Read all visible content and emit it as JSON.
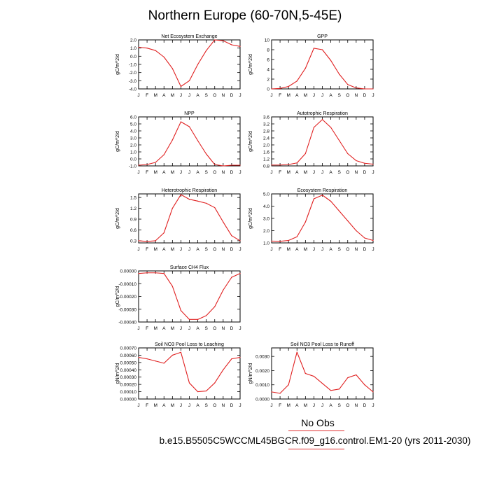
{
  "title": "Northern Europe (60-70N,5-45E)",
  "months": [
    "J",
    "F",
    "M",
    "A",
    "M",
    "J",
    "J",
    "A",
    "S",
    "O",
    "N",
    "D",
    "J"
  ],
  "line_color": "#e02020",
  "legend": {
    "obs_label": "No Obs",
    "obs_line_color": "#e03030"
  },
  "caption": "b.e15.B5505C5WCCML45BGCR.f09_g16.control.EM1-20 (yrs 2011-2030)",
  "chart_data": [
    {
      "id": "nee",
      "type": "line",
      "title": "Net Ecosystem Exchange",
      "ylabel": "gC/m^2/d",
      "ylim": [
        -4.0,
        2.0
      ],
      "yticks": [
        "-4.0",
        "-3.0",
        "-2.0",
        "-1.0",
        "0.0",
        "1.0",
        "2.0"
      ],
      "ytick_values": [
        -4,
        -3,
        -2,
        -1,
        0,
        1,
        2
      ],
      "values": [
        1.1,
        1.0,
        0.7,
        -0.1,
        -1.5,
        -3.7,
        -3.0,
        -1.0,
        0.7,
        2.0,
        1.9,
        1.4,
        1.2
      ]
    },
    {
      "id": "gpp",
      "type": "line",
      "title": "GPP",
      "ylabel": "gC/m^2/d",
      "ylim": [
        0,
        10
      ],
      "yticks": [
        "0",
        "2",
        "4",
        "6",
        "8",
        "10"
      ],
      "ytick_values": [
        0,
        2,
        4,
        6,
        8,
        10
      ],
      "values": [
        0.0,
        0.1,
        0.5,
        1.6,
        4.2,
        8.3,
        8.0,
        5.8,
        3.0,
        0.9,
        0.2,
        0.0,
        0.0
      ]
    },
    {
      "id": "npp",
      "type": "line",
      "title": "NPP",
      "ylabel": "gC/m^2/d",
      "ylim": [
        -1.0,
        6.0
      ],
      "yticks": [
        "-1.0",
        "0.0",
        "1.0",
        "2.0",
        "3.0",
        "4.0",
        "5.0",
        "6.0"
      ],
      "ytick_values": [
        -1,
        0,
        1,
        2,
        3,
        4,
        5,
        6
      ],
      "values": [
        -0.9,
        -0.8,
        -0.5,
        0.6,
        2.7,
        5.3,
        4.6,
        2.6,
        0.7,
        -0.8,
        -1.0,
        -0.9,
        -0.9
      ]
    },
    {
      "id": "ar",
      "type": "line",
      "title": "Autotrophic Respiration",
      "ylabel": "gC/m^2/d",
      "ylim": [
        0.8,
        3.6
      ],
      "yticks": [
        "0.8",
        "1.2",
        "1.6",
        "2.0",
        "2.4",
        "2.8",
        "3.2",
        "3.6"
      ],
      "ytick_values": [
        0.8,
        1.2,
        1.6,
        2.0,
        2.4,
        2.8,
        3.2,
        3.6
      ],
      "values": [
        0.85,
        0.85,
        0.88,
        0.97,
        1.5,
        3.0,
        3.45,
        3.0,
        2.25,
        1.5,
        1.1,
        0.95,
        0.9
      ]
    },
    {
      "id": "hr",
      "type": "line",
      "title": "Heterotrophic Respiration",
      "ylabel": "gC/m^2/d",
      "ylim": [
        0.24,
        1.6
      ],
      "yticks": [
        "0.3",
        "0.6",
        "0.9",
        "1.2",
        "1.5"
      ],
      "ytick_values": [
        0.3,
        0.6,
        0.9,
        1.2,
        1.5
      ],
      "values": [
        0.3,
        0.28,
        0.3,
        0.52,
        1.2,
        1.58,
        1.45,
        1.4,
        1.34,
        1.22,
        0.82,
        0.44,
        0.3
      ]
    },
    {
      "id": "er",
      "type": "line",
      "title": "Ecosystem Respiration",
      "ylabel": "gC/m^2/d",
      "ylim": [
        1.0,
        5.0
      ],
      "yticks": [
        "1.0",
        "2.0",
        "3.0",
        "4.0",
        "5.0"
      ],
      "ytick_values": [
        1,
        2,
        3,
        4,
        5
      ],
      "values": [
        1.15,
        1.13,
        1.2,
        1.5,
        2.7,
        4.6,
        4.9,
        4.4,
        3.6,
        2.8,
        2.0,
        1.4,
        1.2
      ]
    },
    {
      "id": "ch4",
      "type": "line",
      "title": "Surface CH4 Flux",
      "ylabel": "gC/m^2/d",
      "ylim": [
        -0.0004,
        0.0
      ],
      "yticks": [
        "-0.00040",
        "-0.00030",
        "-0.00020",
        "-0.00010",
        "0.00000"
      ],
      "ytick_values": [
        -0.0004,
        -0.0003,
        -0.0002,
        -0.0001,
        0.0
      ],
      "values": [
        -2e-05,
        -1.5e-05,
        -1.5e-05,
        -2e-05,
        -0.00012,
        -0.00031,
        -0.00038,
        -0.00038,
        -0.00035,
        -0.00028,
        -0.00015,
        -5e-05,
        -2e-05
      ]
    },
    {
      "id": "no3leach",
      "type": "line",
      "title": "Soil NO3 Pool Loss to Leaching",
      "ylabel": "gN/m^2/d",
      "ylim": [
        0.0,
        0.0007
      ],
      "yticks": [
        "0.00000",
        "0.00010",
        "0.00020",
        "0.00030",
        "0.00040",
        "0.00050",
        "0.00060",
        "0.00070"
      ],
      "ytick_values": [
        0,
        0.0001,
        0.0002,
        0.0003,
        0.0004,
        0.0005,
        0.0006,
        0.0007
      ],
      "values": [
        0.00057,
        0.00055,
        0.00052,
        0.00049,
        0.0006,
        0.00064,
        0.00022,
        0.0001,
        0.00011,
        0.00022,
        0.0004,
        0.00055,
        0.00057
      ]
    },
    {
      "id": "no3runoff",
      "type": "line",
      "title": "Soil NO3 Pool Loss to Runoff",
      "ylabel": "gN/m^2/d",
      "ylim": [
        0.0,
        0.0036
      ],
      "yticks": [
        "0.0000",
        "0.0010",
        "0.0020",
        "0.0030"
      ],
      "ytick_values": [
        0,
        0.001,
        0.002,
        0.003
      ],
      "values": [
        0.0005,
        0.0004,
        0.001,
        0.0033,
        0.0018,
        0.0016,
        0.0011,
        0.0006,
        0.0007,
        0.0015,
        0.0017,
        0.001,
        0.0005
      ]
    }
  ]
}
